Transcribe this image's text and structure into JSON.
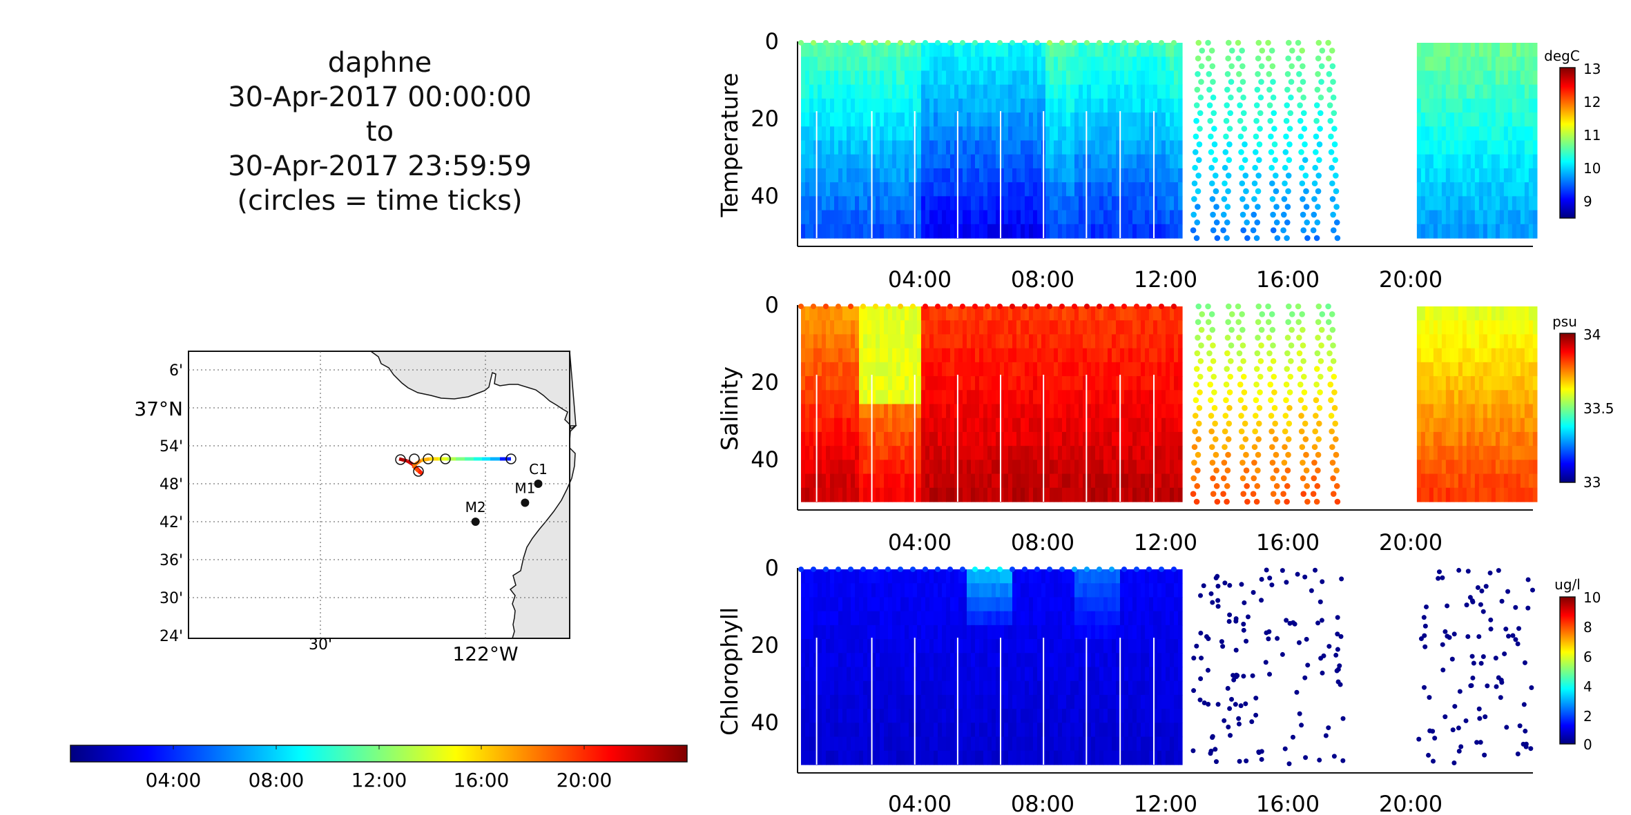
{
  "title": {
    "line1": "daphne",
    "line2": "30-Apr-2017 00:00:00",
    "line3": "to",
    "line4": "30-Apr-2017 23:59:59",
    "line5": "(circles = time ticks)"
  },
  "colors": {
    "jet_stops": [
      "#00007f",
      "#0000ff",
      "#007fff",
      "#00ffff",
      "#7fff7f",
      "#ffff00",
      "#ff7f00",
      "#ff0000",
      "#7f0000"
    ],
    "land": "#e6e6e6",
    "dot": "#00008b"
  },
  "map": {
    "lat_labels": [
      "6'",
      "37°N",
      "54'",
      "48'",
      "42'",
      "36'",
      "30'",
      "24'"
    ],
    "lon_labels": [
      "30'",
      "122°W"
    ],
    "moorings": [
      {
        "name": "M2",
        "lon": -122.03,
        "lat": 36.7
      },
      {
        "name": "M1",
        "lon": -121.88,
        "lat": 36.75
      },
      {
        "name": "C1",
        "lon": -121.84,
        "lat": 36.8
      }
    ]
  },
  "time_colorbar": {
    "tick_labels": [
      "04:00",
      "08:00",
      "12:00",
      "16:00",
      "20:00"
    ]
  },
  "chart_data": [
    {
      "type": "heatmap",
      "ylabel": "Temperature",
      "colorbar_label": "degC",
      "colorbar_ticks": [
        "13",
        "12",
        "11",
        "10",
        "9"
      ],
      "clim": [
        8.5,
        13
      ],
      "x_ticks": [
        "04:00",
        "08:00",
        "12:00",
        "16:00",
        "20:00"
      ],
      "y_ticks": [
        "0",
        "20",
        "40"
      ],
      "x_range_hours": [
        0,
        24
      ],
      "y_range_m": [
        0,
        53
      ],
      "data_gaps_hours": [
        [
          12.5,
          12.9
        ],
        [
          17.8,
          20.2
        ]
      ],
      "yo_segment_hours": [
        12.9,
        17.8
      ]
    },
    {
      "type": "heatmap",
      "ylabel": "Salinity",
      "colorbar_label": "psu",
      "colorbar_ticks": [
        "34",
        "33.5",
        "33"
      ],
      "clim": [
        33,
        34
      ],
      "x_ticks": [
        "04:00",
        "08:00",
        "12:00",
        "16:00",
        "20:00"
      ],
      "y_ticks": [
        "0",
        "20",
        "40"
      ],
      "x_range_hours": [
        0,
        24
      ],
      "y_range_m": [
        0,
        53
      ],
      "data_gaps_hours": [
        [
          12.5,
          12.9
        ],
        [
          17.8,
          20.2
        ]
      ],
      "yo_segment_hours": [
        12.9,
        17.8
      ]
    },
    {
      "type": "heatmap",
      "ylabel": "Chlorophyll",
      "colorbar_label": "ug/l",
      "colorbar_ticks": [
        "10",
        "8",
        "6",
        "4",
        "2",
        "0"
      ],
      "clim": [
        0,
        10
      ],
      "x_ticks": [
        "04:00",
        "08:00",
        "12:00",
        "16:00",
        "20:00"
      ],
      "y_ticks": [
        "0",
        "20",
        "40"
      ],
      "x_range_hours": [
        0,
        24
      ],
      "y_range_m": [
        0,
        53
      ],
      "data_gaps_hours": [
        [
          12.5,
          12.9
        ],
        [
          17.8,
          20.2
        ]
      ],
      "yo_segment_hours": [
        12.9,
        17.8
      ]
    }
  ]
}
